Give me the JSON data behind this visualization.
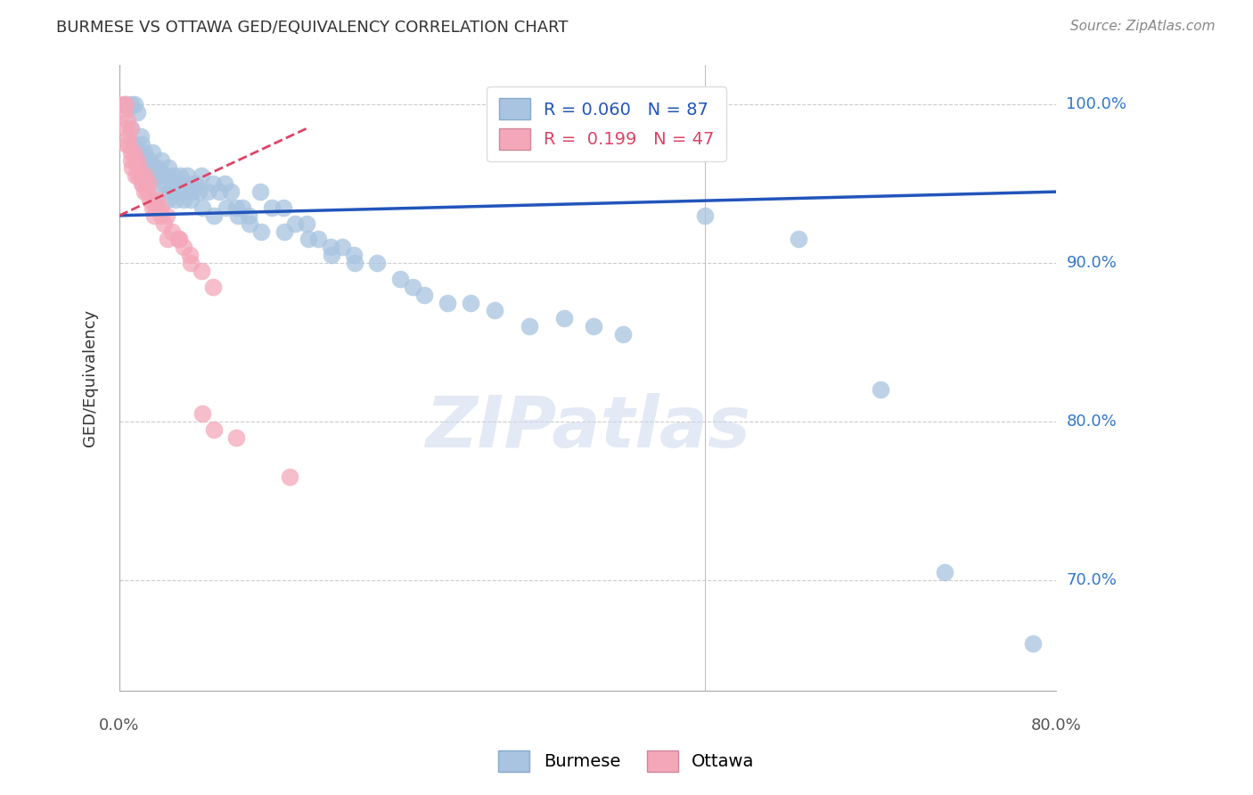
{
  "title": "BURMESE VS OTTAWA GED/EQUIVALENCY CORRELATION CHART",
  "source": "Source: ZipAtlas.com",
  "ylabel": "GED/Equivalency",
  "y_ticks": [
    70.0,
    80.0,
    90.0,
    100.0
  ],
  "y_tick_labels": [
    "70.0%",
    "80.0%",
    "90.0%",
    "100.0%"
  ],
  "xlim": [
    0.0,
    80.0
  ],
  "ylim": [
    63.0,
    102.5
  ],
  "burmese_R": 0.06,
  "burmese_N": 87,
  "ottawa_R": 0.199,
  "ottawa_N": 47,
  "burmese_color": "#a8c4e0",
  "ottawa_color": "#f4a7b9",
  "burmese_line_color": "#2255bb",
  "ottawa_line_color": "#dd4466",
  "burmese_x": [
    0.5,
    0.8,
    1.0,
    1.0,
    1.2,
    1.3,
    1.5,
    1.5,
    1.6,
    1.8,
    1.9,
    2.0,
    2.0,
    2.1,
    2.2,
    2.3,
    2.5,
    2.6,
    2.8,
    3.0,
    3.1,
    3.2,
    3.3,
    3.5,
    3.6,
    3.8,
    4.0,
    4.1,
    4.2,
    4.3,
    4.5,
    4.6,
    4.8,
    5.0,
    5.1,
    5.2,
    5.5,
    5.8,
    6.0,
    6.1,
    6.2,
    6.5,
    6.8,
    7.0,
    7.1,
    7.5,
    8.0,
    8.1,
    8.5,
    9.0,
    9.1,
    9.5,
    10.0,
    10.1,
    10.5,
    11.0,
    11.1,
    12.0,
    12.1,
    13.0,
    14.0,
    14.1,
    15.0,
    16.0,
    16.1,
    17.0,
    18.0,
    18.1,
    19.0,
    20.0,
    20.1,
    22.0,
    24.0,
    25.0,
    26.0,
    28.0,
    30.0,
    32.0,
    35.0,
    38.0,
    40.5,
    43.0,
    50.0,
    58.0,
    65.0,
    70.5,
    78.0
  ],
  "burmese_y": [
    100.0,
    99.8,
    100.0,
    98.5,
    97.5,
    100.0,
    99.5,
    97.0,
    96.5,
    98.0,
    97.5,
    96.0,
    95.5,
    97.0,
    96.5,
    95.0,
    96.5,
    95.5,
    97.0,
    96.0,
    95.5,
    96.0,
    94.5,
    95.5,
    96.5,
    95.0,
    95.5,
    94.0,
    96.0,
    94.5,
    95.0,
    95.5,
    94.0,
    95.0,
    94.5,
    95.5,
    94.0,
    95.5,
    95.0,
    94.0,
    94.5,
    95.0,
    94.5,
    95.5,
    93.5,
    94.5,
    95.0,
    93.0,
    94.5,
    95.0,
    93.5,
    94.5,
    93.5,
    93.0,
    93.5,
    93.0,
    92.5,
    94.5,
    92.0,
    93.5,
    93.5,
    92.0,
    92.5,
    92.5,
    91.5,
    91.5,
    91.0,
    90.5,
    91.0,
    90.5,
    90.0,
    90.0,
    89.0,
    88.5,
    88.0,
    87.5,
    87.5,
    87.0,
    86.0,
    86.5,
    86.0,
    85.5,
    93.0,
    91.5,
    82.0,
    70.5,
    66.0
  ],
  "ottawa_x": [
    0.3,
    0.4,
    0.5,
    0.5,
    0.6,
    0.7,
    0.8,
    0.8,
    0.9,
    1.0,
    1.0,
    1.1,
    1.2,
    1.3,
    1.4,
    1.5,
    1.6,
    1.7,
    1.8,
    1.9,
    2.0,
    2.1,
    2.2,
    2.4,
    2.5,
    2.6,
    2.8,
    3.0,
    3.1,
    3.2,
    3.5,
    3.6,
    3.8,
    4.0,
    4.1,
    4.5,
    5.0,
    5.1,
    5.5,
    6.0,
    6.1,
    7.0,
    7.1,
    8.0,
    8.1,
    10.0,
    14.5
  ],
  "ottawa_y": [
    100.0,
    99.5,
    100.0,
    98.5,
    97.5,
    99.0,
    98.0,
    97.5,
    98.5,
    97.0,
    96.5,
    96.0,
    97.0,
    96.5,
    95.5,
    96.5,
    95.5,
    96.0,
    95.5,
    95.0,
    95.0,
    94.5,
    95.5,
    94.5,
    95.0,
    94.0,
    93.5,
    93.0,
    93.5,
    94.0,
    93.5,
    93.0,
    92.5,
    93.0,
    91.5,
    92.0,
    91.5,
    91.5,
    91.0,
    90.5,
    90.0,
    89.5,
    80.5,
    88.5,
    79.5,
    79.0,
    76.5
  ]
}
